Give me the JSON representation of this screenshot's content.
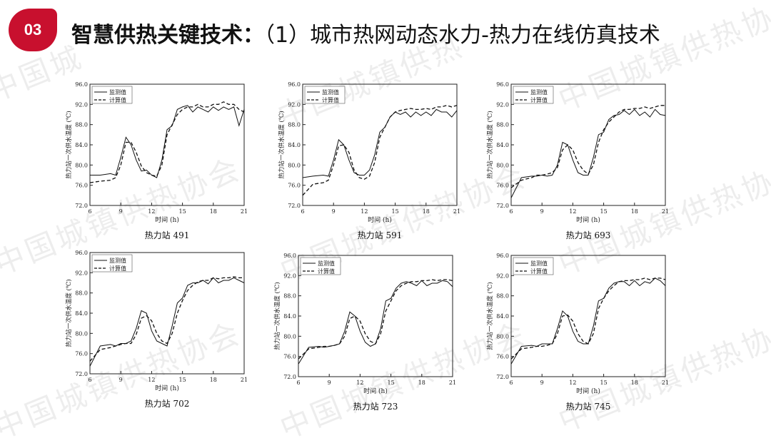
{
  "header": {
    "badge": "03",
    "title_bold": "智慧供热关键技术：",
    "title_rest": "（1）城市热网动态水力-热力在线仿真技术"
  },
  "watermark": {
    "text": "中国城镇供热协会"
  },
  "colors": {
    "badge": "#c8102e",
    "series": "#111111"
  },
  "chart_data": [
    {
      "type": "line",
      "title": "热力站 491",
      "xlabel": "时间 (h)",
      "ylabel": "热力站一次供水温度 (℃)",
      "xlim": [
        6,
        21
      ],
      "ylim": [
        72.0,
        96.0
      ],
      "xticks": [
        "6",
        "9",
        "12",
        "15",
        "18",
        "21"
      ],
      "yticks": [
        "72.0",
        "76.0",
        "80.0",
        "84.0",
        "88.0",
        "92.0",
        "96.0"
      ],
      "legend": "top-left",
      "series": [
        {
          "name": "监测值",
          "style": "solid",
          "x": [
            6,
            7,
            8,
            8.5,
            9,
            9.5,
            10,
            10.5,
            11,
            11.5,
            12,
            12.5,
            13,
            13.5,
            14,
            14.5,
            15,
            15.5,
            16,
            16.5,
            17,
            17.5,
            18,
            18.5,
            19,
            19.5,
            20,
            20.5,
            21
          ],
          "y": [
            78.0,
            78.0,
            78.3,
            78.0,
            81.5,
            85.5,
            84.0,
            81.0,
            78.8,
            79.0,
            78.0,
            77.5,
            81.0,
            87.0,
            87.8,
            91.0,
            91.5,
            91.8,
            90.5,
            91.5,
            91.0,
            90.5,
            91.5,
            90.8,
            91.5,
            91.0,
            91.5,
            87.8,
            91.0
          ]
        },
        {
          "name": "计算值",
          "style": "dashed",
          "x": [
            6,
            7,
            8,
            8.5,
            9,
            9.5,
            10,
            10.5,
            11,
            11.5,
            12,
            12.5,
            13,
            13.5,
            14,
            14.5,
            15,
            15.5,
            16,
            16.5,
            17,
            17.5,
            18,
            18.5,
            19,
            19.5,
            20,
            20.5,
            21
          ],
          "y": [
            76.5,
            76.8,
            77.0,
            77.5,
            80.0,
            84.5,
            84.5,
            82.5,
            79.8,
            78.5,
            78.0,
            77.8,
            80.0,
            86.0,
            88.0,
            90.0,
            91.0,
            91.5,
            91.5,
            92.0,
            91.5,
            91.5,
            92.0,
            92.0,
            92.5,
            92.0,
            92.0,
            91.0,
            90.5
          ]
        }
      ]
    },
    {
      "type": "line",
      "title": "热力站 591",
      "xlabel": "时间 (h)",
      "ylabel": "热力站一次供水温度 (℃)",
      "xlim": [
        6,
        21
      ],
      "ylim": [
        72.0,
        96.0
      ],
      "xticks": [
        "6",
        "9",
        "12",
        "15",
        "18",
        "21"
      ],
      "yticks": [
        "72.0",
        "76.0",
        "80.0",
        "84.0",
        "88.0",
        "92.0",
        "96.0"
      ],
      "legend": "top-left",
      "series": [
        {
          "name": "监测值",
          "style": "solid",
          "x": [
            6,
            7,
            8,
            8.5,
            9,
            9.5,
            10,
            10.5,
            11,
            11.5,
            12,
            12.5,
            13,
            13.5,
            14,
            14.5,
            15,
            15.5,
            16,
            16.5,
            17,
            17.5,
            18,
            18.5,
            19,
            19.5,
            20,
            20.5,
            21
          ],
          "y": [
            77.5,
            77.8,
            78.0,
            77.8,
            81.0,
            85.0,
            84.0,
            81.0,
            78.5,
            78.0,
            78.0,
            79.0,
            82.0,
            86.5,
            87.5,
            89.5,
            90.5,
            90.0,
            90.5,
            89.5,
            90.5,
            89.8,
            90.5,
            89.8,
            91.0,
            90.5,
            90.5,
            89.5,
            90.8
          ]
        },
        {
          "name": "计算值",
          "style": "dashed",
          "x": [
            6,
            7,
            8,
            8.5,
            9,
            9.5,
            10,
            10.5,
            11,
            11.5,
            12,
            12.5,
            13,
            13.5,
            14,
            14.5,
            15,
            15.5,
            16,
            16.5,
            17,
            17.5,
            18,
            18.5,
            19,
            19.5,
            20,
            20.5,
            21
          ],
          "y": [
            74.0,
            76.2,
            76.5,
            77.0,
            80.0,
            83.8,
            84.0,
            82.5,
            79.0,
            77.5,
            77.2,
            77.8,
            80.5,
            85.5,
            87.5,
            89.5,
            90.5,
            90.8,
            91.0,
            91.2,
            91.0,
            91.0,
            91.2,
            91.0,
            91.5,
            91.5,
            91.8,
            91.5,
            91.8
          ]
        }
      ]
    },
    {
      "type": "line",
      "title": "热力站 693",
      "xlabel": "时间 (h)",
      "ylabel": "热力站一次供水温度 (℃)",
      "xlim": [
        6,
        21
      ],
      "ylim": [
        72.0,
        96.0
      ],
      "xticks": [
        "6",
        "9",
        "12",
        "15",
        "18",
        "21"
      ],
      "yticks": [
        "72.0",
        "76.0",
        "80.0",
        "84.0",
        "88.0",
        "92.0",
        "96.0"
      ],
      "legend": "top-left",
      "series": [
        {
          "name": "监测值",
          "style": "solid",
          "x": [
            6,
            7,
            8,
            8.5,
            9,
            9.5,
            10,
            10.5,
            11,
            11.5,
            12,
            12.5,
            13,
            13.5,
            14,
            14.5,
            15,
            15.5,
            16,
            16.5,
            17,
            17.5,
            18,
            18.5,
            19,
            19.5,
            20,
            20.5,
            21
          ],
          "y": [
            73.5,
            77.5,
            77.8,
            77.8,
            78.0,
            77.8,
            78.0,
            80.0,
            84.5,
            84.0,
            81.0,
            78.5,
            78.0,
            78.0,
            81.5,
            86.0,
            86.5,
            89.0,
            89.8,
            90.0,
            90.8,
            90.0,
            91.0,
            89.8,
            90.5,
            89.5,
            91.0,
            90.0,
            89.8
          ]
        },
        {
          "name": "计算值",
          "style": "dashed",
          "x": [
            6,
            7,
            8,
            8.5,
            9,
            9.5,
            10,
            10.5,
            11,
            11.5,
            12,
            12.5,
            13,
            13.5,
            14,
            14.5,
            15,
            15.5,
            16,
            16.5,
            17,
            17.5,
            18,
            18.5,
            19,
            19.5,
            20,
            20.5,
            21
          ],
          "y": [
            75.5,
            77.0,
            77.5,
            78.0,
            78.0,
            78.2,
            78.5,
            79.5,
            83.0,
            84.0,
            83.0,
            80.5,
            79.0,
            78.2,
            80.0,
            84.5,
            87.0,
            88.5,
            89.5,
            90.5,
            91.0,
            91.0,
            91.2,
            91.2,
            91.5,
            91.2,
            91.5,
            91.8,
            91.8
          ]
        }
      ]
    },
    {
      "type": "line",
      "title": "热力站 702",
      "xlabel": "时间 (h)",
      "ylabel": "热力站一次供水温度 (℃)",
      "xlim": [
        6,
        21
      ],
      "ylim": [
        72.0,
        96.0
      ],
      "xticks": [
        "6",
        "9",
        "12",
        "15",
        "18",
        "21"
      ],
      "yticks": [
        "72.0",
        "76.0",
        "80.0",
        "84.0",
        "88.0",
        "92.0",
        "96.0"
      ],
      "legend": "top-left",
      "series": [
        {
          "name": "监测值",
          "style": "solid",
          "x": [
            6,
            7,
            8,
            8.5,
            9,
            9.5,
            10,
            10.5,
            11,
            11.5,
            12,
            12.5,
            13,
            13.5,
            14,
            14.5,
            15,
            15.5,
            16,
            16.5,
            17,
            17.5,
            18,
            18.5,
            19,
            19.5,
            20,
            20.5,
            21
          ],
          "y": [
            73.5,
            77.5,
            77.8,
            77.5,
            78.0,
            78.0,
            78.5,
            81.0,
            84.5,
            84.0,
            80.5,
            78.5,
            78.0,
            77.5,
            81.5,
            86.0,
            87.0,
            89.5,
            90.0,
            90.0,
            90.5,
            89.8,
            91.0,
            90.0,
            90.5,
            90.5,
            91.0,
            90.5,
            90.0
          ]
        },
        {
          "name": "计算值",
          "style": "dashed",
          "x": [
            6,
            7,
            8,
            8.5,
            9,
            9.5,
            10,
            10.5,
            11,
            11.5,
            12,
            12.5,
            13,
            13.5,
            14,
            14.5,
            15,
            15.5,
            16,
            16.5,
            17,
            17.5,
            18,
            18.5,
            19,
            19.5,
            20,
            20.5,
            21
          ],
          "y": [
            74.5,
            76.8,
            77.2,
            77.5,
            77.8,
            78.0,
            78.0,
            79.8,
            83.0,
            83.5,
            82.5,
            80.0,
            78.5,
            78.0,
            80.0,
            84.0,
            86.5,
            88.5,
            89.5,
            90.2,
            90.5,
            90.5,
            91.0,
            90.8,
            91.0,
            91.0,
            91.2,
            91.0,
            91.0
          ]
        }
      ]
    },
    {
      "type": "line",
      "title": "热力站 723",
      "xlabel": "时间 (h)",
      "ylabel": "热力站一次供水温度 (℃)",
      "xlim": [
        6,
        21
      ],
      "ylim": [
        72.0,
        96.0
      ],
      "xticks": [
        "6",
        "9",
        "12",
        "15",
        "18",
        "21"
      ],
      "yticks": [
        "72.0",
        "76.0",
        "80.0",
        "84.0",
        "88.0",
        "92.0",
        "96.0"
      ],
      "legend": "top-left",
      "series": [
        {
          "name": "监测值",
          "style": "solid",
          "x": [
            6,
            7,
            8,
            8.5,
            9,
            9.5,
            10,
            10.5,
            11,
            11.5,
            12,
            12.5,
            13,
            13.5,
            14,
            14.5,
            15,
            15.5,
            16,
            16.5,
            17,
            17.5,
            18,
            18.5,
            19,
            19.5,
            20,
            20.5,
            21
          ],
          "y": [
            74.5,
            77.8,
            78.0,
            77.8,
            78.0,
            78.2,
            78.5,
            81.0,
            84.8,
            84.0,
            81.0,
            78.8,
            78.0,
            78.5,
            81.5,
            87.0,
            87.5,
            89.5,
            90.5,
            90.8,
            90.5,
            90.0,
            91.0,
            90.0,
            90.5,
            90.5,
            91.0,
            90.8,
            89.8
          ]
        },
        {
          "name": "计算值",
          "style": "dashed",
          "x": [
            6,
            7,
            8,
            8.5,
            9,
            9.5,
            10,
            10.5,
            11,
            11.5,
            12,
            12.5,
            13,
            13.5,
            14,
            14.5,
            15,
            15.5,
            16,
            16.5,
            17,
            17.5,
            18,
            18.5,
            19,
            19.5,
            20,
            20.5,
            21
          ],
          "y": [
            75.5,
            77.5,
            77.8,
            78.0,
            78.0,
            78.2,
            78.5,
            80.0,
            83.5,
            84.0,
            83.0,
            80.5,
            79.0,
            78.5,
            80.5,
            85.0,
            87.0,
            89.0,
            90.0,
            90.5,
            90.8,
            90.8,
            91.0,
            91.0,
            91.2,
            91.0,
            91.2,
            91.2,
            91.0
          ]
        }
      ]
    },
    {
      "type": "line",
      "title": "热力站 745",
      "xlabel": "时间 (h)",
      "ylabel": "热力站一次供水温度 (℃)",
      "xlim": [
        6,
        21
      ],
      "ylim": [
        72.0,
        96.0
      ],
      "xticks": [
        "6",
        "9",
        "12",
        "15",
        "18",
        "21"
      ],
      "yticks": [
        "72.0",
        "76.0",
        "80.0",
        "84.0",
        "88.0",
        "92.0",
        "96.0"
      ],
      "legend": "top-left",
      "series": [
        {
          "name": "监测值",
          "style": "solid",
          "x": [
            6,
            7,
            8,
            8.5,
            9,
            9.5,
            10,
            10.5,
            11,
            11.5,
            12,
            12.5,
            13,
            13.5,
            14,
            14.5,
            15,
            15.5,
            16,
            16.5,
            17,
            17.5,
            18,
            18.5,
            19,
            19.5,
            20,
            20.5,
            21
          ],
          "y": [
            74.5,
            78.0,
            78.2,
            78.0,
            78.5,
            78.5,
            78.5,
            81.5,
            85.0,
            84.0,
            81.0,
            79.0,
            78.5,
            78.5,
            82.0,
            87.0,
            87.5,
            89.5,
            90.5,
            90.8,
            90.8,
            90.0,
            91.0,
            90.0,
            90.8,
            90.5,
            91.5,
            91.0,
            90.0
          ]
        },
        {
          "name": "计算值",
          "style": "dashed",
          "x": [
            6,
            7,
            8,
            8.5,
            9,
            9.5,
            10,
            10.5,
            11,
            11.5,
            12,
            12.5,
            13,
            13.5,
            14,
            14.5,
            15,
            15.5,
            16,
            16.5,
            17,
            17.5,
            18,
            18.5,
            19,
            19.5,
            20,
            20.5,
            21
          ],
          "y": [
            75.5,
            77.5,
            77.8,
            78.0,
            78.0,
            78.2,
            78.5,
            80.5,
            84.0,
            84.2,
            83.0,
            80.5,
            79.0,
            78.5,
            80.5,
            85.5,
            87.5,
            89.0,
            90.0,
            90.8,
            91.0,
            91.0,
            91.2,
            91.2,
            91.5,
            91.2,
            91.5,
            91.5,
            91.2
          ]
        }
      ]
    }
  ]
}
